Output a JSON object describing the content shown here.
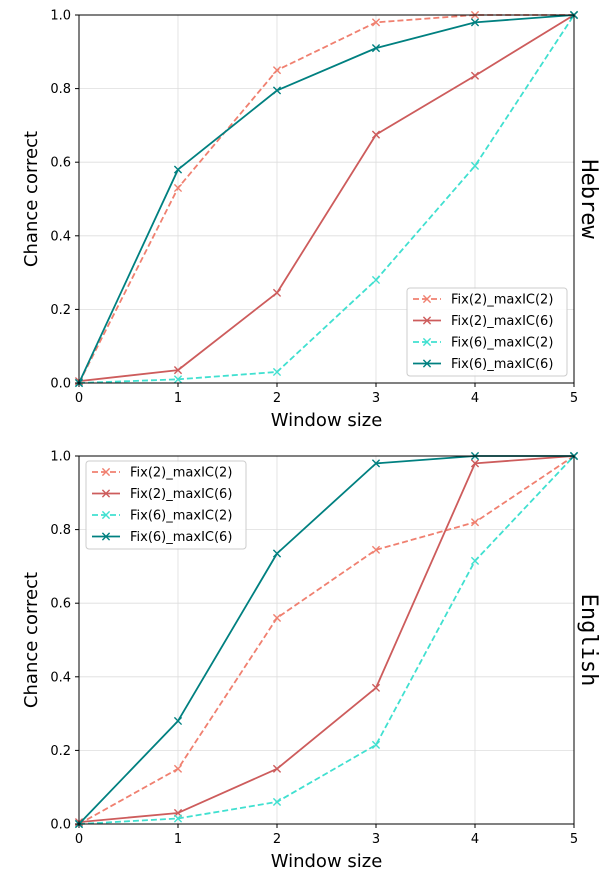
{
  "chart_data": [
    {
      "type": "line",
      "facet_label": "Hebrew",
      "xlabel": "Window size",
      "ylabel": "Chance correct",
      "xlim": [
        0,
        5
      ],
      "ylim": [
        0,
        1.0
      ],
      "xticks": [
        "0",
        "1",
        "2",
        "3",
        "4",
        "5"
      ],
      "yticks": [
        "0.0",
        "0.2",
        "0.4",
        "0.6",
        "0.8",
        "1.0"
      ],
      "grid": true,
      "legend_position": "lower-right",
      "x": [
        0,
        1,
        2,
        3,
        4,
        5
      ],
      "series": [
        {
          "name": "Fix(2)_maxIC(2)",
          "color": "#f08070",
          "dashed": true,
          "marker": "x",
          "values": [
            0.0,
            0.53,
            0.85,
            0.98,
            1.0,
            1.0
          ]
        },
        {
          "name": "Fix(2)_maxIC(6)",
          "color": "#cd5c5c",
          "dashed": false,
          "marker": "x",
          "values": [
            0.005,
            0.035,
            0.245,
            0.675,
            0.835,
            1.0
          ]
        },
        {
          "name": "Fix(6)_maxIC(2)",
          "color": "#40e0d0",
          "dashed": true,
          "marker": "x",
          "values": [
            0.0,
            0.01,
            0.03,
            0.28,
            0.59,
            1.0
          ]
        },
        {
          "name": "Fix(6)_maxIC(6)",
          "color": "#008080",
          "dashed": false,
          "marker": "x",
          "values": [
            0.0,
            0.58,
            0.795,
            0.91,
            0.98,
            1.0
          ]
        }
      ]
    },
    {
      "type": "line",
      "facet_label": "English",
      "xlabel": "Window size",
      "ylabel": "Chance correct",
      "xlim": [
        0,
        5
      ],
      "ylim": [
        0,
        1.0
      ],
      "xticks": [
        "0",
        "1",
        "2",
        "3",
        "4",
        "5"
      ],
      "yticks": [
        "0.0",
        "0.2",
        "0.4",
        "0.6",
        "0.8",
        "1.0"
      ],
      "grid": true,
      "legend_position": "upper-left",
      "x": [
        0,
        1,
        2,
        3,
        4,
        5
      ],
      "series": [
        {
          "name": "Fix(2)_maxIC(2)",
          "color": "#f08070",
          "dashed": true,
          "marker": "x",
          "values": [
            0.0,
            0.15,
            0.56,
            0.745,
            0.82,
            1.0
          ]
        },
        {
          "name": "Fix(2)_maxIC(6)",
          "color": "#cd5c5c",
          "dashed": false,
          "marker": "x",
          "values": [
            0.005,
            0.03,
            0.15,
            0.37,
            0.98,
            1.0
          ]
        },
        {
          "name": "Fix(6)_maxIC(2)",
          "color": "#40e0d0",
          "dashed": true,
          "marker": "x",
          "values": [
            0.0,
            0.015,
            0.06,
            0.215,
            0.715,
            1.0
          ]
        },
        {
          "name": "Fix(6)_maxIC(6)",
          "color": "#008080",
          "dashed": false,
          "marker": "x",
          "values": [
            0.0,
            0.28,
            0.735,
            0.98,
            1.0,
            1.0
          ]
        }
      ]
    }
  ]
}
